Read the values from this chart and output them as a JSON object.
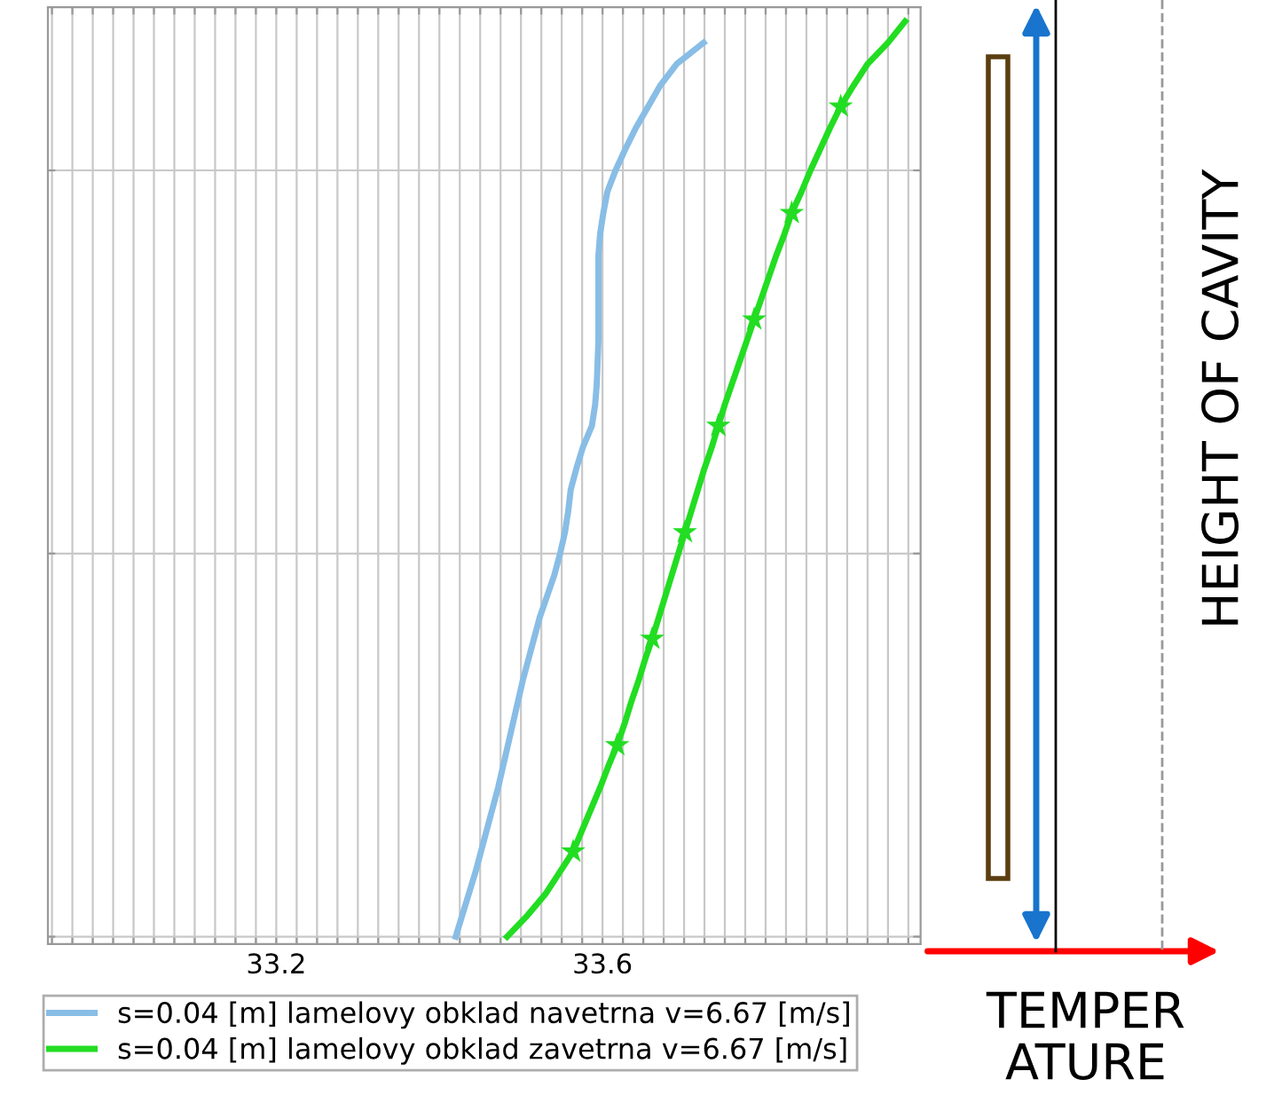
{
  "chart_data": {
    "type": "line",
    "orientation": "horizontal",
    "categories": [
      null,
      null,
      null,
      null,
      null,
      null,
      null,
      null,
      null,
      null,
      null,
      null,
      null,
      null,
      null,
      null,
      null,
      null,
      null,
      null,
      null,
      null,
      null,
      null,
      null,
      null,
      null,
      null,
      null,
      null,
      null,
      null,
      null,
      null,
      null,
      null,
      null,
      null,
      null,
      null,
      null,
      null,
      null,
      null
    ],
    "series": [
      {
        "name": "s=0.04 [m] lamelovy obklad navetrna v=6.67 [m/s]",
        "color": "#88bde6",
        "marker": "none",
        "values": [
          null,
          33.724,
          33.691,
          33.671,
          33.656,
          33.641,
          33.628,
          33.616,
          33.606,
          33.601,
          33.597,
          33.595,
          33.595,
          33.595,
          33.595,
          33.595,
          33.594,
          33.593,
          33.591,
          33.587,
          33.576,
          33.568,
          33.561,
          33.558,
          33.554,
          33.548,
          33.541,
          33.532,
          33.523,
          33.516,
          33.509,
          33.502,
          33.496,
          33.49,
          33.484,
          33.478,
          33.472,
          33.465,
          33.458,
          33.451,
          33.444,
          33.436,
          33.428,
          33.42
        ]
      },
      {
        "name": "s=0.04 [m] lamelovy obklad zavetrna v=6.67 [m/s]",
        "color": "#22dd22",
        "marker": "none",
        "values": [
          33.971,
          33.95,
          33.925,
          33.908,
          33.892,
          33.879,
          33.867,
          33.855,
          33.844,
          33.832,
          33.823,
          33.813,
          33.804,
          33.795,
          33.786,
          33.777,
          33.768,
          33.759,
          33.75,
          33.742,
          33.734,
          33.725,
          33.717,
          33.709,
          33.701,
          33.693,
          33.685,
          33.677,
          33.669,
          33.661,
          33.652,
          33.644,
          33.635,
          33.627,
          33.618,
          33.607,
          33.597,
          33.586,
          33.575,
          33.564,
          33.547,
          33.53,
          33.508,
          33.483
        ]
      },
      {
        "type": "scatter",
        "color": "#22dd22",
        "marker": "star",
        "values": [
          null,
          null,
          null,
          null,
          33.892,
          null,
          null,
          null,
          null,
          33.832,
          null,
          null,
          null,
          null,
          33.786,
          null,
          null,
          null,
          null,
          33.742,
          null,
          null,
          null,
          null,
          33.701,
          null,
          null,
          null,
          null,
          33.661,
          null,
          null,
          null,
          null,
          33.618,
          null,
          null,
          null,
          null,
          33.564,
          null,
          null,
          null,
          null
        ]
      }
    ],
    "xlim": [
      32.92,
      33.99
    ],
    "xticks": [
      {
        "value": 32.925,
        "label": null
      },
      {
        "value": 32.95,
        "label": null
      },
      {
        "value": 32.975,
        "label": null
      },
      {
        "value": 33.0,
        "label": null
      },
      {
        "value": 33.025,
        "label": null
      },
      {
        "value": 33.05,
        "label": null
      },
      {
        "value": 33.075,
        "label": null
      },
      {
        "value": 33.1,
        "label": null
      },
      {
        "value": 33.125,
        "label": null
      },
      {
        "value": 33.15,
        "label": null
      },
      {
        "value": 33.175,
        "label": null
      },
      33.2,
      {
        "value": 33.225,
        "label": null
      },
      {
        "value": 33.25,
        "label": null
      },
      {
        "value": 33.275,
        "label": null
      },
      {
        "value": 33.3,
        "label": null
      },
      {
        "value": 33.325,
        "label": null
      },
      {
        "value": 33.35,
        "label": null
      },
      {
        "value": 33.375,
        "label": null
      },
      {
        "value": 33.4,
        "label": null
      },
      {
        "value": 33.425,
        "label": null
      },
      {
        "value": 33.45,
        "label": null
      },
      {
        "value": 33.475,
        "label": null
      },
      {
        "value": 33.5,
        "label": null
      },
      {
        "value": 33.525,
        "label": null
      },
      {
        "value": 33.55,
        "label": null
      },
      {
        "value": 33.575,
        "label": null
      },
      33.6,
      {
        "value": 33.625,
        "label": null
      },
      {
        "value": 33.65,
        "label": null
      },
      {
        "value": 33.675,
        "label": null
      },
      {
        "value": 33.7,
        "label": null
      },
      {
        "value": 33.725,
        "label": null
      },
      {
        "value": 33.75,
        "label": null
      },
      {
        "value": 33.775,
        "label": null
      },
      {
        "value": 33.8,
        "label": null
      },
      {
        "value": 33.825,
        "label": null
      },
      {
        "value": 33.85,
        "label": null
      },
      {
        "value": 33.875,
        "label": null
      },
      {
        "value": 33.9,
        "label": null
      },
      {
        "value": 33.925,
        "label": null
      },
      {
        "value": 33.95,
        "label": null
      },
      {
        "value": 33.975,
        "label": null
      }
    ],
    "grid": true,
    "legend": "bottom",
    "tick_labels": "x",
    "annotations": [
      "HEIGHT OF CAVITY",
      "TEMPER\nATURE"
    ]
  }
}
